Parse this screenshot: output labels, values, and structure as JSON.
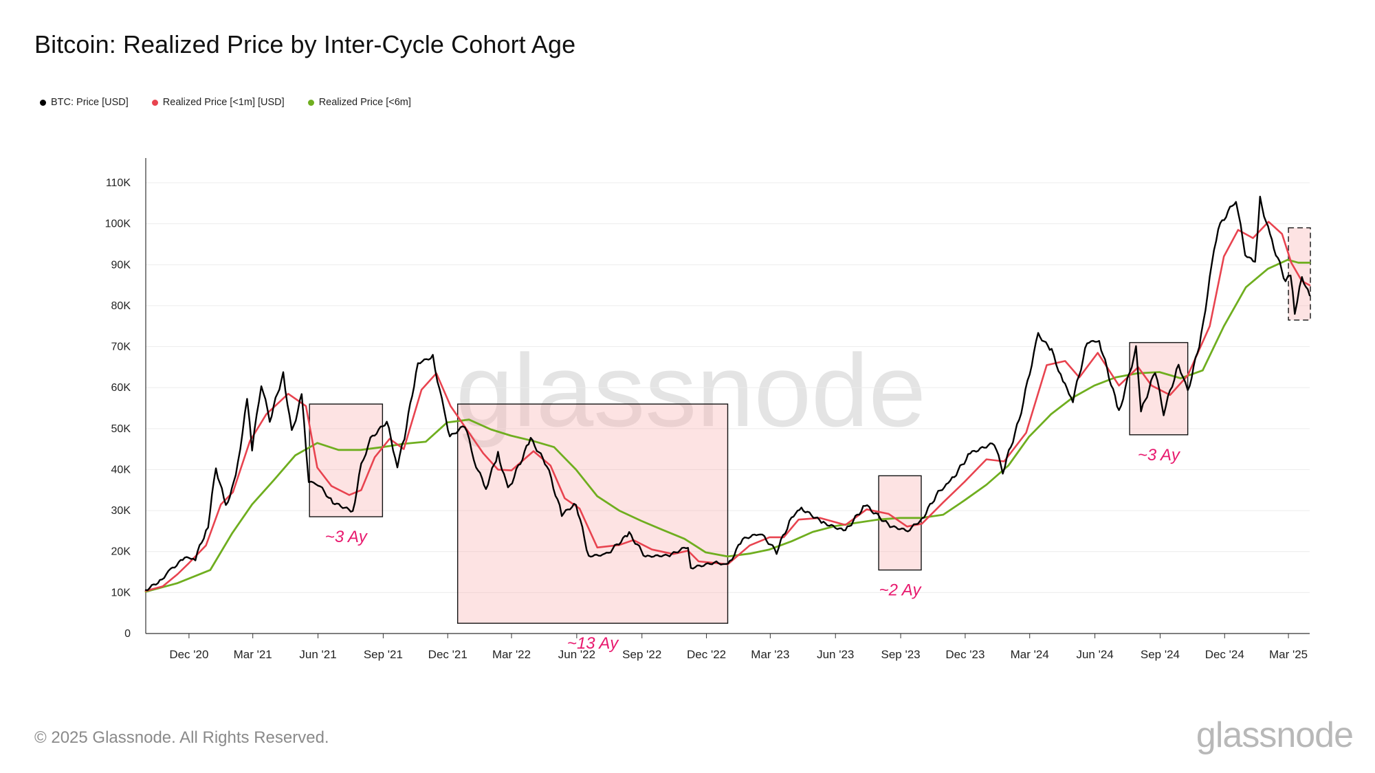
{
  "title": "Bitcoin: Realized Price by Inter-Cycle Cohort Age",
  "legend": [
    {
      "label": "BTC: Price [USD]",
      "color": "#000000"
    },
    {
      "label": "Realized Price [<1m] [USD]",
      "color": "#e8434f"
    },
    {
      "label": "Realized Price [<6m]",
      "color": "#6fae1f"
    }
  ],
  "watermark": "glassnode",
  "footer": {
    "copyright": "© 2025 Glassnode. All Rights Reserved.",
    "logo": "glassnode"
  },
  "chart_data": {
    "type": "line",
    "title": "Bitcoin: Realized Price by Inter-Cycle Cohort Age",
    "x_ticks": [
      "Dec '20",
      "Mar '21",
      "Jun '21",
      "Sep '21",
      "Dec '21",
      "Mar '22",
      "Jun '22",
      "Sep '22",
      "Dec '22",
      "Mar '23",
      "Jun '23",
      "Sep '23",
      "Dec '23",
      "Mar '24",
      "Jun '24",
      "Sep '24",
      "Dec '24",
      "Mar '25"
    ],
    "y_ticks": [
      "0",
      "10K",
      "20K",
      "30K",
      "40K",
      "50K",
      "60K",
      "70K",
      "80K",
      "90K",
      "100K",
      "110K"
    ],
    "ylim": [
      0,
      110000
    ],
    "xlim": [
      "2020-10-01",
      "2025-03-31"
    ],
    "grid": "horizontal",
    "legend_position": "top-left",
    "series": [
      {
        "name": "BTC: Price [USD]",
        "color": "#000000",
        "points": [
          [
            "2020-10-01",
            10600
          ],
          [
            "2020-10-21",
            12800
          ],
          [
            "2020-11-05",
            15500
          ],
          [
            "2020-11-25",
            18500
          ],
          [
            "2020-12-10",
            18300
          ],
          [
            "2020-12-28",
            26500
          ],
          [
            "2021-01-08",
            40500
          ],
          [
            "2021-01-22",
            31000
          ],
          [
            "2021-02-05",
            38000
          ],
          [
            "2021-02-21",
            57000
          ],
          [
            "2021-02-28",
            45000
          ],
          [
            "2021-03-13",
            61000
          ],
          [
            "2021-03-25",
            52000
          ],
          [
            "2021-04-13",
            63500
          ],
          [
            "2021-04-25",
            49000
          ],
          [
            "2021-05-09",
            58000
          ],
          [
            "2021-05-19",
            37000
          ],
          [
            "2021-06-01",
            36500
          ],
          [
            "2021-06-22",
            32000
          ],
          [
            "2021-07-20",
            29800
          ],
          [
            "2021-08-01",
            41000
          ],
          [
            "2021-08-14",
            47500
          ],
          [
            "2021-09-06",
            51700
          ],
          [
            "2021-09-21",
            41000
          ],
          [
            "2021-10-01",
            48000
          ],
          [
            "2021-10-20",
            66000
          ],
          [
            "2021-11-10",
            67500
          ],
          [
            "2021-11-26",
            54000
          ],
          [
            "2021-12-04",
            48000
          ],
          [
            "2021-12-25",
            50800
          ],
          [
            "2022-01-10",
            41000
          ],
          [
            "2022-01-24",
            35500
          ],
          [
            "2022-02-10",
            44000
          ],
          [
            "2022-02-24",
            35000
          ],
          [
            "2022-03-28",
            47500
          ],
          [
            "2022-04-20",
            41000
          ],
          [
            "2022-05-11",
            29000
          ],
          [
            "2022-05-31",
            31800
          ],
          [
            "2022-06-18",
            18900
          ],
          [
            "2022-07-13",
            19300
          ],
          [
            "2022-08-14",
            24400
          ],
          [
            "2022-09-06",
            18800
          ],
          [
            "2022-10-10",
            19100
          ],
          [
            "2022-11-05",
            21300
          ],
          [
            "2022-11-09",
            16000
          ],
          [
            "2022-12-15",
            17400
          ],
          [
            "2022-12-31",
            16550
          ],
          [
            "2023-01-21",
            23000
          ],
          [
            "2023-02-15",
            24500
          ],
          [
            "2023-03-10",
            20000
          ],
          [
            "2023-03-31",
            28400
          ],
          [
            "2023-04-14",
            30500
          ],
          [
            "2023-05-15",
            27000
          ],
          [
            "2023-06-15",
            25000
          ],
          [
            "2023-07-13",
            31400
          ],
          [
            "2023-08-17",
            26200
          ],
          [
            "2023-09-11",
            25100
          ],
          [
            "2023-10-01",
            27900
          ],
          [
            "2023-10-24",
            34500
          ],
          [
            "2023-11-10",
            37000
          ],
          [
            "2023-12-08",
            44000
          ],
          [
            "2024-01-11",
            46500
          ],
          [
            "2024-01-23",
            39500
          ],
          [
            "2024-02-15",
            52000
          ],
          [
            "2024-03-13",
            73000
          ],
          [
            "2024-04-01",
            69000
          ],
          [
            "2024-04-17",
            61500
          ],
          [
            "2024-05-01",
            57000
          ],
          [
            "2024-05-21",
            71000
          ],
          [
            "2024-06-07",
            71500
          ],
          [
            "2024-07-05",
            54000
          ],
          [
            "2024-07-29",
            69500
          ],
          [
            "2024-08-05",
            54000
          ],
          [
            "2024-08-25",
            64000
          ],
          [
            "2024-09-06",
            53900
          ],
          [
            "2024-09-27",
            65800
          ],
          [
            "2024-10-10",
            59000
          ],
          [
            "2024-10-29",
            72500
          ],
          [
            "2024-11-13",
            90000
          ],
          [
            "2024-11-22",
            98900
          ],
          [
            "2024-12-17",
            106000
          ],
          [
            "2024-12-30",
            92500
          ],
          [
            "2025-01-13",
            90500
          ],
          [
            "2025-01-20",
            106000
          ],
          [
            "2025-02-03",
            97000
          ],
          [
            "2025-02-25",
            86000
          ],
          [
            "2025-03-04",
            88000
          ],
          [
            "2025-03-10",
            78500
          ],
          [
            "2025-03-20",
            87000
          ],
          [
            "2025-03-31",
            82500
          ]
        ]
      },
      {
        "name": "Realized Price [<1m] [USD]",
        "color": "#e8434f",
        "points": [
          [
            "2020-10-01",
            10400
          ],
          [
            "2020-10-25",
            11500
          ],
          [
            "2020-11-15",
            14500
          ],
          [
            "2020-12-01",
            17200
          ],
          [
            "2020-12-25",
            21500
          ],
          [
            "2021-01-15",
            31500
          ],
          [
            "2021-02-01",
            34500
          ],
          [
            "2021-02-25",
            47000
          ],
          [
            "2021-03-20",
            53500
          ],
          [
            "2021-04-20",
            58500
          ],
          [
            "2021-05-15",
            55500
          ],
          [
            "2021-05-31",
            40500
          ],
          [
            "2021-06-20",
            36000
          ],
          [
            "2021-07-15",
            33800
          ],
          [
            "2021-08-01",
            35000
          ],
          [
            "2021-08-20",
            43000
          ],
          [
            "2021-09-10",
            47500
          ],
          [
            "2021-09-30",
            45000
          ],
          [
            "2021-10-25",
            59500
          ],
          [
            "2021-11-15",
            63500
          ],
          [
            "2021-12-05",
            55500
          ],
          [
            "2021-12-31",
            49000
          ],
          [
            "2022-01-20",
            44000
          ],
          [
            "2022-02-10",
            40000
          ],
          [
            "2022-03-01",
            39800
          ],
          [
            "2022-04-01",
            44500
          ],
          [
            "2022-04-25",
            41000
          ],
          [
            "2022-05-15",
            33000
          ],
          [
            "2022-06-05",
            30500
          ],
          [
            "2022-06-30",
            21000
          ],
          [
            "2022-07-31",
            21600
          ],
          [
            "2022-08-20",
            22800
          ],
          [
            "2022-09-15",
            20500
          ],
          [
            "2022-10-15",
            19400
          ],
          [
            "2022-11-05",
            20200
          ],
          [
            "2022-11-20",
            17600
          ],
          [
            "2022-12-31",
            16900
          ],
          [
            "2023-01-31",
            21500
          ],
          [
            "2023-02-28",
            23500
          ],
          [
            "2023-03-20",
            23500
          ],
          [
            "2023-04-10",
            27800
          ],
          [
            "2023-05-10",
            28200
          ],
          [
            "2023-06-15",
            26500
          ],
          [
            "2023-07-15",
            30300
          ],
          [
            "2023-08-15",
            29200
          ],
          [
            "2023-09-10",
            26100
          ],
          [
            "2023-10-01",
            26800
          ],
          [
            "2023-10-31",
            32000
          ],
          [
            "2023-11-30",
            37000
          ],
          [
            "2023-12-31",
            42500
          ],
          [
            "2024-01-25",
            42000
          ],
          [
            "2024-02-25",
            49000
          ],
          [
            "2024-03-25",
            65500
          ],
          [
            "2024-04-20",
            66500
          ],
          [
            "2024-05-10",
            62500
          ],
          [
            "2024-06-05",
            68500
          ],
          [
            "2024-07-05",
            60500
          ],
          [
            "2024-08-01",
            65000
          ],
          [
            "2024-08-20",
            60500
          ],
          [
            "2024-09-15",
            58200
          ],
          [
            "2024-10-10",
            63000
          ],
          [
            "2024-11-10",
            75000
          ],
          [
            "2024-11-30",
            92000
          ],
          [
            "2024-12-20",
            98500
          ],
          [
            "2025-01-10",
            96500
          ],
          [
            "2025-02-01",
            100500
          ],
          [
            "2025-02-20",
            97500
          ],
          [
            "2025-03-05",
            90500
          ],
          [
            "2025-03-20",
            86000
          ],
          [
            "2025-03-31",
            85000
          ]
        ]
      },
      {
        "name": "Realized Price [<6m]",
        "color": "#6fae1f",
        "points": [
          [
            "2020-10-01",
            10200
          ],
          [
            "2020-11-15",
            12300
          ],
          [
            "2020-12-31",
            15500
          ],
          [
            "2021-01-31",
            24500
          ],
          [
            "2021-02-28",
            31500
          ],
          [
            "2021-03-31",
            37500
          ],
          [
            "2021-04-30",
            43500
          ],
          [
            "2021-05-31",
            46500
          ],
          [
            "2021-06-30",
            44800
          ],
          [
            "2021-07-31",
            44800
          ],
          [
            "2021-08-31",
            45500
          ],
          [
            "2021-09-30",
            46300
          ],
          [
            "2021-10-31",
            46800
          ],
          [
            "2021-11-30",
            51500
          ],
          [
            "2021-12-31",
            52200
          ],
          [
            "2022-01-31",
            49800
          ],
          [
            "2022-02-28",
            48300
          ],
          [
            "2022-03-31",
            47000
          ],
          [
            "2022-04-30",
            45500
          ],
          [
            "2022-05-31",
            40000
          ],
          [
            "2022-06-30",
            33500
          ],
          [
            "2022-07-31",
            30000
          ],
          [
            "2022-08-31",
            27500
          ],
          [
            "2022-09-30",
            25300
          ],
          [
            "2022-10-31",
            23100
          ],
          [
            "2022-11-30",
            19800
          ],
          [
            "2022-12-31",
            18800
          ],
          [
            "2023-01-31",
            19500
          ],
          [
            "2023-02-28",
            20500
          ],
          [
            "2023-03-31",
            22500
          ],
          [
            "2023-04-30",
            24800
          ],
          [
            "2023-05-31",
            26200
          ],
          [
            "2023-06-30",
            27000
          ],
          [
            "2023-07-31",
            27800
          ],
          [
            "2023-08-31",
            28200
          ],
          [
            "2023-09-30",
            28200
          ],
          [
            "2023-10-31",
            29000
          ],
          [
            "2023-11-30",
            32500
          ],
          [
            "2023-12-31",
            36300
          ],
          [
            "2024-01-31",
            41000
          ],
          [
            "2024-02-29",
            48000
          ],
          [
            "2024-03-31",
            53500
          ],
          [
            "2024-04-30",
            57500
          ],
          [
            "2024-05-31",
            60500
          ],
          [
            "2024-06-30",
            62500
          ],
          [
            "2024-07-31",
            63500
          ],
          [
            "2024-08-31",
            63800
          ],
          [
            "2024-09-30",
            62300
          ],
          [
            "2024-10-31",
            64200
          ],
          [
            "2024-11-30",
            75000
          ],
          [
            "2024-12-31",
            84500
          ],
          [
            "2025-01-31",
            89000
          ],
          [
            "2025-02-28",
            91200
          ],
          [
            "2025-03-15",
            90500
          ],
          [
            "2025-03-31",
            90500
          ]
        ]
      }
    ],
    "annotations": [
      {
        "label": "~3 Ay",
        "start": "2021-05-20",
        "end": "2021-08-31",
        "y0": 28500,
        "y1": 56000,
        "style": "solid"
      },
      {
        "label": "~13 Ay",
        "start": "2021-12-15",
        "end": "2022-12-31",
        "y0": 2500,
        "y1": 56000,
        "style": "solid"
      },
      {
        "label": "~2 Ay",
        "start": "2023-08-01",
        "end": "2023-09-30",
        "y0": 15500,
        "y1": 38500,
        "style": "solid"
      },
      {
        "label": "~3 Ay",
        "start": "2024-07-20",
        "end": "2024-10-10",
        "y0": 48500,
        "y1": 71000,
        "style": "solid"
      },
      {
        "label": "",
        "start": "2025-03-01",
        "end": "2025-04-01",
        "y0": 76500,
        "y1": 99000,
        "style": "dashed"
      }
    ]
  }
}
